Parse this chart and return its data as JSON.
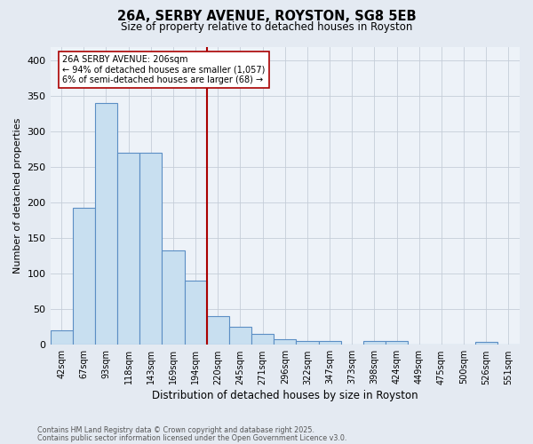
{
  "title": "26A, SERBY AVENUE, ROYSTON, SG8 5EB",
  "subtitle": "Size of property relative to detached houses in Royston",
  "xlabel": "Distribution of detached houses by size in Royston",
  "ylabel": "Number of detached properties",
  "bin_labels": [
    "42sqm",
    "67sqm",
    "93sqm",
    "118sqm",
    "143sqm",
    "169sqm",
    "194sqm",
    "220sqm",
    "245sqm",
    "271sqm",
    "296sqm",
    "322sqm",
    "347sqm",
    "373sqm",
    "398sqm",
    "424sqm",
    "449sqm",
    "475sqm",
    "500sqm",
    "526sqm",
    "551sqm"
  ],
  "bar_values": [
    20,
    193,
    340,
    270,
    270,
    133,
    90,
    40,
    25,
    15,
    8,
    5,
    5,
    0,
    5,
    5,
    0,
    0,
    0,
    4,
    0
  ],
  "bar_color": "#c8dff0",
  "bar_edge_color": "#5b8ec4",
  "vline_x": 7,
  "vline_color": "#aa0000",
  "annotation_text": "26A SERBY AVENUE: 206sqm\n← 94% of detached houses are smaller (1,057)\n6% of semi-detached houses are larger (68) →",
  "annotation_box_facecolor": "#ffffff",
  "annotation_box_edgecolor": "#aa0000",
  "ylim": [
    0,
    420
  ],
  "yticks": [
    0,
    50,
    100,
    150,
    200,
    250,
    300,
    350,
    400
  ],
  "footnote_line1": "Contains HM Land Registry data © Crown copyright and database right 2025.",
  "footnote_line2": "Contains public sector information licensed under the Open Government Licence v3.0.",
  "bg_color": "#e4eaf2",
  "plot_bg_color": "#edf2f8",
  "grid_color": "#c5cdd8"
}
